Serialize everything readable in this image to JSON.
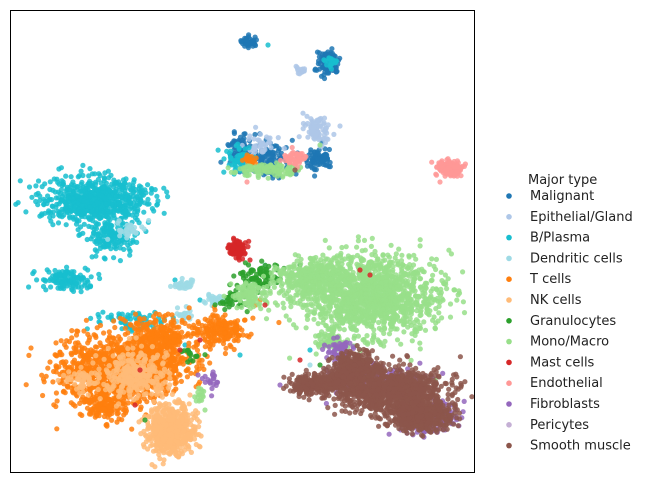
{
  "chart_data": {
    "type": "scatter",
    "title": "",
    "xlabel": "",
    "ylabel": "",
    "xlim": [
      0,
      464
    ],
    "ylim": [
      0,
      462
    ],
    "grid": false,
    "axis_ticks": false,
    "legend": {
      "title": "Major type",
      "placement": "outside-right"
    },
    "series": [
      {
        "name": "Malignant",
        "color": "#1f77b4",
        "clusters": [
          [
            240,
            32,
            8,
            5,
            40
          ],
          [
            318,
            52,
            10,
            12,
            90
          ],
          [
            230,
            142,
            10,
            16,
            90
          ],
          [
            260,
            150,
            18,
            14,
            120
          ],
          [
            308,
            148,
            14,
            10,
            80
          ],
          [
            255,
            85,
            0,
            0,
            0
          ]
        ],
        "points": [
          [
            305,
            60
          ],
          [
            312,
            132
          ],
          [
            234,
            124
          ],
          [
            286,
            164
          ]
        ]
      },
      {
        "name": "Epithelial/Gland",
        "color": "#aec7e8",
        "clusters": [
          [
            308,
            120,
            12,
            12,
            80
          ],
          [
            250,
            135,
            14,
            8,
            40
          ],
          [
            290,
            60,
            6,
            4,
            15
          ]
        ],
        "points": [
          [
            260,
            128
          ],
          [
            330,
            116
          ]
        ]
      },
      {
        "name": "B/Plasma",
        "color": "#17becf",
        "clusters": [
          [
            85,
            190,
            48,
            20,
            700
          ],
          [
            100,
            225,
            22,
            16,
            160
          ],
          [
            55,
            270,
            22,
            10,
            120
          ],
          [
            120,
            310,
            30,
            10,
            70
          ],
          [
            230,
            150,
            12,
            12,
            60
          ],
          [
            320,
            52,
            6,
            6,
            20
          ]
        ],
        "points": [
          [
            258,
            35
          ],
          [
            230,
            345
          ],
          [
            190,
            290
          ],
          [
            175,
            335
          ],
          [
            165,
            270
          ],
          [
            300,
            340
          ]
        ]
      },
      {
        "name": "Dendritic cells",
        "color": "#9edae5",
        "clusters": [
          [
            175,
            275,
            10,
            5,
            40
          ],
          [
            205,
            290,
            10,
            6,
            30
          ],
          [
            175,
            305,
            8,
            6,
            20
          ],
          [
            120,
            220,
            12,
            8,
            30
          ]
        ],
        "points": [
          [
            300,
            355
          ],
          [
            255,
            255
          ]
        ]
      },
      {
        "name": "T cells",
        "color": "#ff7f0e",
        "clusters": [
          [
            110,
            360,
            58,
            30,
            1100
          ],
          [
            150,
            330,
            30,
            20,
            300
          ],
          [
            210,
            320,
            25,
            15,
            180
          ],
          [
            95,
            395,
            20,
            14,
            140
          ],
          [
            240,
            150,
            6,
            5,
            20
          ]
        ],
        "points": [
          [
            250,
            290
          ],
          [
            235,
            310
          ],
          [
            205,
            300
          ],
          [
            280,
            155
          ]
        ]
      },
      {
        "name": "NK cells",
        "color": "#ffbb78",
        "clusters": [
          [
            160,
            420,
            22,
            22,
            600
          ],
          [
            125,
            365,
            30,
            20,
            300
          ],
          [
            75,
            370,
            18,
            10,
            60
          ]
        ],
        "points": [
          [
            180,
            385
          ],
          [
            185,
            350
          ]
        ]
      },
      {
        "name": "Granulocytes",
        "color": "#2ca02c",
        "clusters": [
          [
            250,
            265,
            20,
            12,
            80
          ],
          [
            225,
            290,
            12,
            10,
            40
          ],
          [
            180,
            345,
            10,
            8,
            15
          ]
        ],
        "points": [
          [
            290,
            255
          ],
          [
            310,
            355
          ],
          [
            135,
            410
          ],
          [
            265,
            255
          ]
        ]
      },
      {
        "name": "Mono/Macro",
        "color": "#98df8a",
        "clusters": [
          [
            360,
            285,
            62,
            36,
            1400
          ],
          [
            300,
            270,
            30,
            18,
            300
          ],
          [
            260,
            160,
            28,
            6,
            110
          ],
          [
            240,
            285,
            16,
            12,
            100
          ],
          [
            320,
            330,
            12,
            8,
            60
          ],
          [
            190,
            385,
            6,
            6,
            15
          ]
        ],
        "points": [
          [
            195,
            400
          ],
          [
            235,
            165
          ],
          [
            310,
            135
          ]
        ]
      },
      {
        "name": "Mast cells",
        "color": "#d62728",
        "clusters": [
          [
            227,
            238,
            7,
            9,
            120
          ]
        ],
        "points": [
          [
            240,
            250
          ],
          [
            350,
            260
          ],
          [
            360,
            265
          ],
          [
            130,
            360
          ],
          [
            125,
            395
          ],
          [
            170,
            340
          ],
          [
            290,
            350
          ],
          [
            190,
            330
          ],
          [
            350,
            370
          ],
          [
            255,
            295
          ]
        ]
      },
      {
        "name": "Endothelial",
        "color": "#ff9896",
        "clusters": [
          [
            440,
            158,
            10,
            7,
            150
          ],
          [
            285,
            148,
            10,
            8,
            50
          ]
        ],
        "points": [
          [
            237,
            172
          ],
          [
            430,
            172
          ]
        ]
      },
      {
        "name": "Fibroblasts",
        "color": "#9467bd",
        "clusters": [
          [
            420,
            408,
            22,
            14,
            300
          ],
          [
            360,
            370,
            40,
            12,
            200
          ],
          [
            330,
            340,
            14,
            10,
            60
          ],
          [
            200,
            370,
            8,
            8,
            20
          ]
        ],
        "points": [
          [
            270,
            375
          ],
          [
            188,
            365
          ]
        ]
      },
      {
        "name": "Pericytes",
        "color": "#c5b0d5",
        "clusters": [
          [
            400,
            380,
            10,
            6,
            50
          ],
          [
            318,
            372,
            10,
            6,
            30
          ]
        ],
        "points": [
          [
            420,
            400
          ]
        ]
      },
      {
        "name": "Smooth muscle",
        "color": "#8c564b",
        "clusters": [
          [
            380,
            380,
            50,
            20,
            1000
          ],
          [
            410,
            405,
            28,
            14,
            500
          ],
          [
            345,
            355,
            20,
            12,
            250
          ],
          [
            300,
            375,
            20,
            8,
            200
          ],
          [
            330,
            370,
            18,
            10,
            150
          ]
        ],
        "points": [
          [
            285,
            160
          ]
        ]
      }
    ]
  }
}
